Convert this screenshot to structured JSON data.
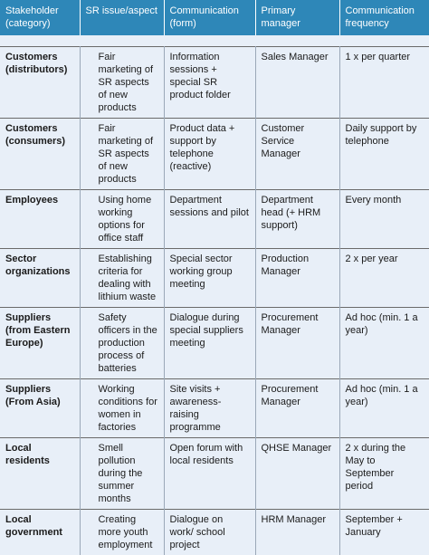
{
  "headers": {
    "stakeholder": "Stakeholder (category)",
    "issue": "SR issue/aspect",
    "communication_form": "Communication (form)",
    "manager": "Primary manager",
    "frequency": "Communication frequency"
  },
  "rows": [
    {
      "stakeholder": "Customers (distributors)",
      "issue": "Fair marketing of SR aspects of new products",
      "communication_form": "Information sessions + special SR product folder",
      "manager": "Sales Manager",
      "frequency": "1 x per quarter"
    },
    {
      "stakeholder": "Customers (consumers)",
      "issue": "Fair marketing of SR aspects of new products",
      "communication_form": "Product data + support by telephone (reactive)",
      "manager": "Customer Service Manager",
      "frequency": "Daily support by telephone"
    },
    {
      "stakeholder": "Employees",
      "issue": "Using home working options for office staff",
      "communication_form": "Department sessions and pilot",
      "manager": "Department head (+ HRM support)",
      "frequency": "Every month"
    },
    {
      "stakeholder": "Sector organizations",
      "issue": "Establishing criteria for dealing with lithium waste",
      "communication_form": "Special sector working group meeting",
      "manager": "Production Manager",
      "frequency": "2 x per year"
    },
    {
      "stakeholder": "Suppliers (from Eastern Europe)",
      "issue": "Safety officers in the production process of batteries",
      "communication_form": "Dialogue during special suppliers meeting",
      "manager": "Procurement Manager",
      "frequency": "Ad hoc (min. 1 a year)"
    },
    {
      "stakeholder": "Suppliers (From Asia)",
      "issue": "Working conditions for women in factories",
      "communication_form": "Site visits + awareness-raising programme",
      "manager": "Procurement Manager",
      "frequency": "Ad hoc (min. 1 a year)"
    },
    {
      "stakeholder": "Local residents",
      "issue": "Smell pollution during the summer months",
      "communication_form": "Open forum with local residents",
      "manager": "QHSE Manager",
      "frequency": "2 x during the May to September period"
    },
    {
      "stakeholder": "Local government",
      "issue": "Creating more youth employment",
      "communication_form": "Dialogue on work/ school project",
      "manager": "HRM Manager",
      "frequency": "September + January"
    }
  ]
}
